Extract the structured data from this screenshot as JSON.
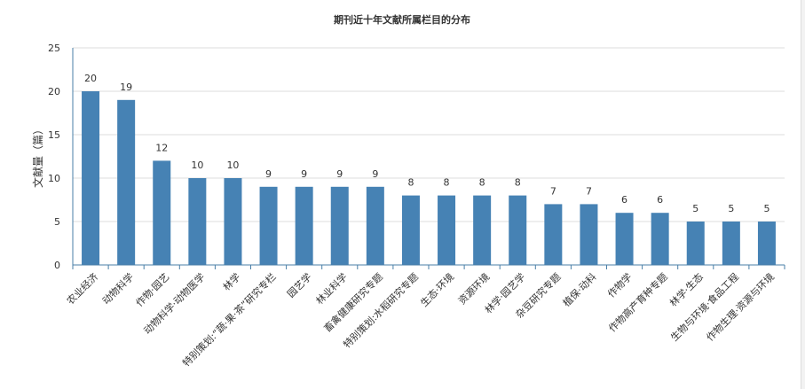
{
  "chart_data": {
    "type": "bar",
    "title": "期刊近十年文献所属栏目的分布",
    "ylabel": "文献量（篇）",
    "xlabel": "",
    "ylim": [
      0,
      25
    ],
    "yticks": [
      0,
      5,
      10,
      15,
      20,
      25
    ],
    "grid": true,
    "bar_color": "#4682b4",
    "categories": [
      "农业经济",
      "动物科学",
      "作物·园艺",
      "动物科学·动物医学",
      "林学",
      "特别策划:“蔬·果·茶”研究专栏",
      "园艺学",
      "林业科学",
      "畜禽健康研究专题",
      "特别策划:水稻研究专题",
      "生态·环境",
      "资源环境",
      "林学·园艺学",
      "杂豆研究专题",
      "植保·动科",
      "作物学",
      "作物高产育种专题",
      "林学·生态",
      "生物与环境·食品工程",
      "作物生理·资源与环境"
    ],
    "values": [
      20,
      19,
      12,
      10,
      10,
      9,
      9,
      9,
      9,
      8,
      8,
      8,
      8,
      7,
      7,
      6,
      6,
      5,
      5,
      5
    ]
  }
}
